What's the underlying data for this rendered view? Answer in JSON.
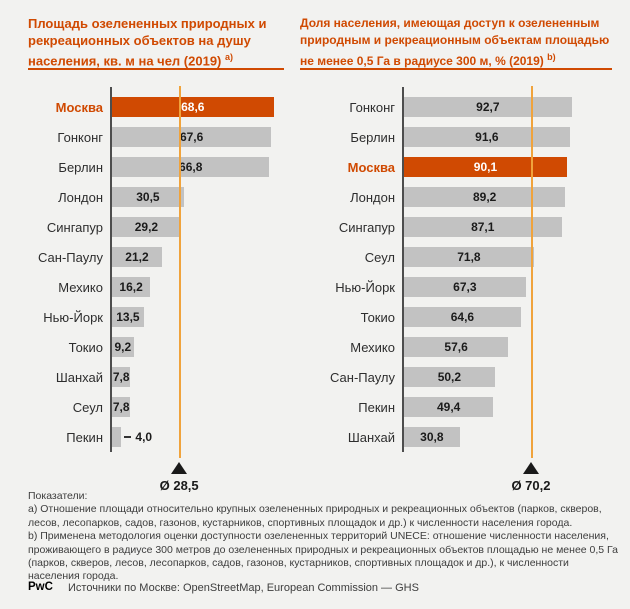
{
  "colors": {
    "background": "#F2F2F0",
    "brand_orange": "#D04A02",
    "bar_gray": "#C2C2C2",
    "average_line_amber": "#F0A33C",
    "axis_gray": "#4D4D4D",
    "text_dark": "#2E2E2E"
  },
  "chart_data": [
    {
      "type": "bar",
      "orientation": "horizontal",
      "title": [
        "Площадь озелененных природных и",
        "рекреационных объектов на душу",
        "населения, кв. м на чел (2019)"
      ],
      "title_sup": "а)",
      "categories": [
        "Москва",
        "Гонконг",
        "Берлин",
        "Лондон",
        "Сингапур",
        "Сан-Паулу",
        "Мехико",
        "Нью-Йорк",
        "Токио",
        "Шанхай",
        "Сеул",
        "Пекин"
      ],
      "values": [
        68.6,
        67.6,
        66.8,
        30.5,
        29.2,
        21.2,
        16.2,
        13.5,
        9.2,
        7.8,
        7.8,
        4.0
      ],
      "value_labels": [
        "68,6",
        "67,6",
        "66,8",
        "30,5",
        "29,2",
        "21,2",
        "16,2",
        "13,5",
        "9,2",
        "7,8",
        "7,8",
        "4,0"
      ],
      "highlight": "Москва",
      "outside_labels": [
        "Пекин"
      ],
      "average": 28.5,
      "average_label": "Ø 28,5",
      "xlim": [
        0,
        73
      ],
      "grid": false,
      "legend": false
    },
    {
      "type": "bar",
      "orientation": "horizontal",
      "title": [
        "Доля населения, имеющая доступ к озелененным",
        "природным и рекреационным объектам площадью",
        "не менее 0,5 Га в радиусе 300 м, % (2019)"
      ],
      "title_sup": "b)",
      "categories": [
        "Гонконг",
        "Берлин",
        "Москва",
        "Лондон",
        "Сингапур",
        "Сеул",
        "Нью-Йорк",
        "Токио",
        "Мехико",
        "Сан-Паулу",
        "Пекин",
        "Шанхай"
      ],
      "values": [
        92.7,
        91.6,
        90.1,
        89.2,
        87.1,
        71.8,
        67.3,
        64.6,
        57.6,
        50.2,
        49.4,
        30.8
      ],
      "value_labels": [
        "92,7",
        "91,6",
        "90,1",
        "89,2",
        "87,1",
        "71,8",
        "67,3",
        "64,6",
        "57,6",
        "50,2",
        "49,4",
        "30,8"
      ],
      "highlight": "Москва",
      "outside_labels": [],
      "average": 70.2,
      "average_label": "Ø 70,2",
      "xlim": [
        0,
        115
      ],
      "grid": false,
      "legend": false
    }
  ],
  "footer": {
    "notes": [
      "Показатели:",
      "а) Отношение площади относительно крупных озелененных природных и рекреационных объектов (парков, скверов, лесов, лесопарков, садов, газонов, кустарников, спортивных площадок и др.) к численности населения города.",
      "b) Применена методология оценки доступности озелененных территорий UNECE: отношение численности населения, проживающего в радиусе 300 метров до озелененных природных и рекреационных объектов площадью не менее 0,5 Га (парков, скверов, лесов, лесопарков, садов, газонов, кустарников, спортивных площадок и др.), к численности населения города."
    ],
    "brand": "PwC",
    "source": "Источники по Москве: OpenStreetMap, European Commission — GHS"
  }
}
